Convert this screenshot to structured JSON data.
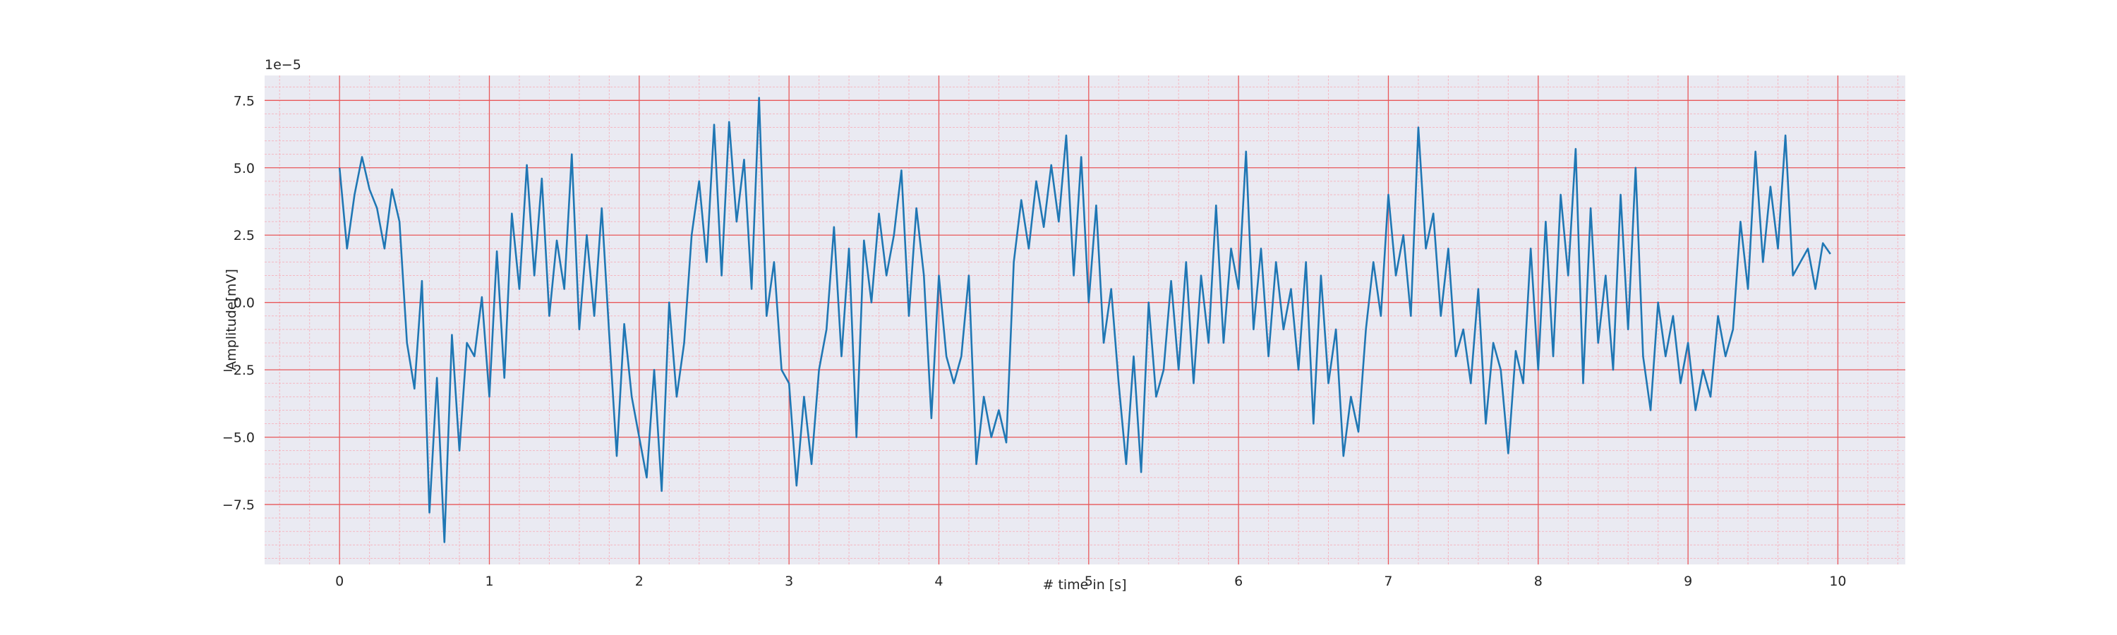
{
  "chart_data": {
    "type": "line",
    "xlabel": "# time in [s]",
    "ylabel": "Amplitude[mV]",
    "y_offset_label": "1e−5",
    "color": "#1f77b4",
    "background": "#eaeaf2",
    "grid": true,
    "major_grid_color": "#e8585a",
    "minor_grid_color": "#f4b8c2",
    "xlim": [
      -0.5,
      10.45
    ],
    "ylim": [
      -9.725,
      8.425
    ],
    "xticks": [
      0,
      1,
      2,
      3,
      4,
      5,
      6,
      7,
      8,
      9,
      10
    ],
    "yticks": [
      {
        "value": -7.5,
        "label": "−7.5"
      },
      {
        "value": -5,
        "label": "−5.0"
      },
      {
        "value": -2.5,
        "label": "−2.5"
      },
      {
        "value": 0,
        "label": "0.0"
      },
      2.5,
      {
        "value": 5,
        "label": "5.0"
      },
      7.5
    ],
    "xminor_ticks": [
      -0.4,
      -0.2,
      0.2,
      0.4,
      0.6,
      0.8,
      1.2,
      1.4,
      1.6,
      1.8,
      2.2,
      2.4,
      2.6,
      2.8,
      3.2,
      3.4,
      3.6,
      3.8,
      4.2,
      4.4,
      4.6,
      4.8,
      5.2,
      5.4,
      5.6,
      5.8,
      6.2,
      6.4,
      6.6,
      6.8,
      7.2,
      7.4,
      7.6,
      7.8,
      8.2,
      8.4,
      8.6,
      8.8,
      9.2,
      9.4,
      9.6,
      9.8,
      10.2,
      10.4
    ],
    "yminor_ticks": [
      -9.5,
      -9,
      -8.5,
      -8,
      -7,
      -6.5,
      -6,
      -5.5,
      -4.5,
      -4,
      -3.5,
      -3,
      -2,
      -1.5,
      -1,
      -0.5,
      0.5,
      1,
      1.5,
      2,
      3,
      3.5,
      4,
      4.5,
      5.5,
      6,
      6.5,
      7,
      8
    ],
    "x": [
      0,
      0.05,
      0.1,
      0.15,
      0.2,
      0.25,
      0.3,
      0.35,
      0.4,
      0.45,
      0.5,
      0.55,
      0.6,
      0.65,
      0.7,
      0.75,
      0.8,
      0.85,
      0.9,
      0.95,
      1,
      1.05,
      1.1,
      1.15,
      1.2,
      1.25,
      1.3,
      1.35,
      1.4,
      1.45,
      1.5,
      1.55,
      1.6,
      1.65,
      1.7,
      1.75,
      1.8,
      1.85,
      1.9,
      1.95,
      2,
      2.05,
      2.1,
      2.15,
      2.2,
      2.25,
      2.3,
      2.35,
      2.4,
      2.45,
      2.5,
      2.55,
      2.6,
      2.65,
      2.7,
      2.75,
      2.8,
      2.85,
      2.9,
      2.95,
      3,
      3.05,
      3.1,
      3.15,
      3.2,
      3.25,
      3.3,
      3.35,
      3.4,
      3.45,
      3.5,
      3.55,
      3.6,
      3.65,
      3.7,
      3.75,
      3.8,
      3.85,
      3.9,
      3.95,
      4,
      4.05,
      4.1,
      4.15,
      4.2,
      4.25,
      4.3,
      4.35,
      4.4,
      4.45,
      4.5,
      4.55,
      4.6,
      4.65,
      4.7,
      4.75,
      4.8,
      4.85,
      4.9,
      4.95,
      5,
      5.05,
      5.1,
      5.15,
      5.2,
      5.25,
      5.3,
      5.35,
      5.4,
      5.45,
      5.5,
      5.55,
      5.6,
      5.65,
      5.7,
      5.75,
      5.8,
      5.85,
      5.9,
      5.95,
      6,
      6.05,
      6.1,
      6.15,
      6.2,
      6.25,
      6.3,
      6.35,
      6.4,
      6.45,
      6.5,
      6.55,
      6.6,
      6.65,
      6.7,
      6.75,
      6.8,
      6.85,
      6.9,
      6.95,
      7,
      7.05,
      7.1,
      7.15,
      7.2,
      7.25,
      7.3,
      7.35,
      7.4,
      7.45,
      7.5,
      7.55,
      7.6,
      7.65,
      7.7,
      7.75,
      7.8,
      7.85,
      7.9,
      7.95,
      8,
      8.05,
      8.1,
      8.15,
      8.2,
      8.25,
      8.3,
      8.35,
      8.4,
      8.45,
      8.5,
      8.55,
      8.6,
      8.65,
      8.7,
      8.75,
      8.8,
      8.85,
      8.9,
      8.95,
      9,
      9.05,
      9.1,
      9.15,
      9.2,
      9.25,
      9.3,
      9.35,
      9.4,
      9.45,
      9.5,
      9.55,
      9.6,
      9.65,
      9.7,
      9.75,
      9.8,
      9.85,
      9.9,
      9.95
    ],
    "values": [
      5.0,
      2.0,
      4.0,
      5.4,
      4.2,
      3.5,
      2.0,
      4.2,
      3.0,
      -1.5,
      -3.2,
      0.8,
      -7.8,
      -2.8,
      -8.9,
      -1.2,
      -5.5,
      -1.5,
      -2.0,
      0.2,
      -3.5,
      1.9,
      -2.8,
      3.3,
      0.5,
      5.1,
      1.0,
      4.6,
      -0.5,
      2.3,
      0.5,
      5.5,
      -1.0,
      2.5,
      -0.5,
      3.5,
      -1.2,
      -5.7,
      -0.8,
      -3.5,
      -5.0,
      -6.5,
      -2.5,
      -7.0,
      0.0,
      -3.5,
      -1.5,
      2.5,
      4.5,
      1.5,
      6.6,
      1.0,
      6.7,
      3.0,
      5.3,
      0.5,
      7.6,
      -0.5,
      1.5,
      -2.5,
      -3.0,
      -6.8,
      -3.5,
      -6.0,
      -2.5,
      -1.0,
      2.8,
      -2.0,
      2.0,
      -5.0,
      2.3,
      0.0,
      3.3,
      1.0,
      2.5,
      4.9,
      -0.5,
      3.5,
      1.0,
      -4.3,
      1.0,
      -2.0,
      -3.0,
      -2.0,
      1.0,
      -6.0,
      -3.5,
      -5.0,
      -4.0,
      -5.2,
      1.5,
      3.8,
      2.0,
      4.5,
      2.8,
      5.1,
      3.0,
      6.2,
      1.0,
      5.4,
      0.0,
      3.6,
      -1.5,
      0.5,
      -3.0,
      -6.0,
      -2.0,
      -6.3,
      0.0,
      -3.5,
      -2.5,
      0.8,
      -2.5,
      1.5,
      -3.0,
      1.0,
      -1.5,
      3.6,
      -1.5,
      2.0,
      0.5,
      5.6,
      -1.0,
      2.0,
      -2.0,
      1.5,
      -1.0,
      0.5,
      -2.5,
      1.5,
      -4.5,
      1.0,
      -3.0,
      -1.0,
      -5.7,
      -3.5,
      -4.8,
      -1.0,
      1.5,
      -0.5,
      4.0,
      1.0,
      2.5,
      -0.5,
      6.5,
      2.0,
      3.3,
      -0.5,
      2.0,
      -2.0,
      -1.0,
      -3.0,
      0.5,
      -4.5,
      -1.5,
      -2.5,
      -5.6,
      -1.8,
      -3.0,
      2.0,
      -2.5,
      3.0,
      -2.0,
      4.0,
      1.0,
      5.7,
      -3.0,
      3.5,
      -1.5,
      1.0,
      -2.5,
      4.0,
      -1.0,
      5.0,
      -2.0,
      -4.0,
      0.0,
      -2.0,
      -0.5,
      -3.0,
      -1.5,
      -4.0,
      -2.5,
      -3.5,
      -0.5,
      -2.0,
      -1.0,
      3.0,
      0.5,
      5.6,
      1.5,
      4.3,
      2.0,
      6.2,
      1.0,
      1.5,
      2.0,
      0.5,
      2.2,
      1.8
    ]
  }
}
